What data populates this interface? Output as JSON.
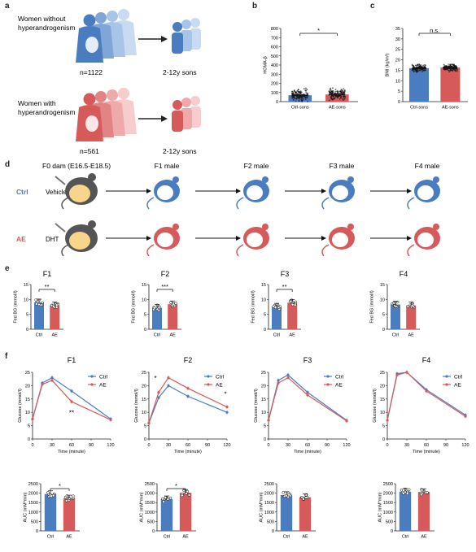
{
  "colors": {
    "ctrl": "#4a7dc0",
    "ae": "#d65a5a",
    "ctrl_light": "#a8c4e8",
    "ae_light": "#eeaaaa",
    "mouse_body": "#555555",
    "belly": "#f7d58a"
  },
  "panel_labels": {
    "a": "a",
    "b": "b",
    "c": "c",
    "d": "d",
    "e": "e",
    "f": "f"
  },
  "panel_a": {
    "group1": "Women without\nhyperandrogenism",
    "group1_n": "n=1122",
    "group1_sons": "2-12y sons",
    "group2": "Women with\nhyperandrogenism",
    "group2_n": "n=561",
    "group2_sons": "2-12y sons"
  },
  "panel_b": {
    "ylabel": "HOMA-β",
    "yticks": [
      "0",
      "100",
      "200",
      "300",
      "400",
      "500",
      "600",
      "700",
      "800"
    ],
    "categories": [
      "Ctrl-sons",
      "AE-sons"
    ],
    "sig": "*"
  },
  "panel_c": {
    "ylabel": "BMI (kg/m²)",
    "yticks": [
      "0",
      "5",
      "10",
      "15",
      "20",
      "25",
      "30",
      "35"
    ],
    "categories": [
      "Ctrl-sons",
      "AE-sons"
    ],
    "sig": "n.s."
  },
  "panel_d": {
    "f0": "F0 dam (E16.5-E18.5)",
    "gens": [
      "F1 male",
      "F2 male",
      "F3 male",
      "F4 male"
    ],
    "ctrl": "Ctrl",
    "ae": "AE",
    "vehicle": "Vehicle",
    "dht": "DHT"
  },
  "panel_e": {
    "ylabel": "Fed BG (mmol/l)",
    "yticks": [
      "0",
      "5",
      "10",
      "15"
    ],
    "categories": [
      "Ctrl",
      "AE"
    ],
    "titles": [
      "F1",
      "F2",
      "F3",
      "F4"
    ],
    "sig": [
      "**",
      "***",
      "**",
      ""
    ]
  },
  "panel_f": {
    "titles": [
      "F1",
      "F2",
      "F3",
      "F4"
    ],
    "legend": [
      "Ctrl",
      "AE"
    ],
    "ylabel": "Glucose (mmol/l)",
    "xlabel": "Time (minute)",
    "yticks": [
      "0",
      "5",
      "10",
      "15",
      "20",
      "25"
    ],
    "xticks": [
      "0",
      "30",
      "60",
      "90",
      "120"
    ],
    "auc_ylabel": "AUC (mM*min)",
    "auc_yticks": [
      "0",
      "500",
      "1000",
      "1500",
      "2000",
      "2500"
    ],
    "auc_categories": [
      "Ctrl",
      "AE"
    ],
    "auc_sig": [
      "*",
      "*",
      "",
      ""
    ],
    "line_sig": [
      [
        "**"
      ],
      [
        "*",
        "*"
      ],
      [],
      []
    ]
  },
  "chart_data": [
    {
      "type": "bar",
      "panel": "b",
      "categories": [
        "Ctrl-sons",
        "AE-sons"
      ],
      "values": [
        70,
        78
      ],
      "ylim": [
        0,
        800
      ],
      "ylabel": "HOMA-β",
      "n": [
        1122,
        561
      ]
    },
    {
      "type": "bar",
      "panel": "c",
      "categories": [
        "Ctrl-sons",
        "AE-sons"
      ],
      "values": [
        16,
        16.3
      ],
      "ylim": [
        0,
        35
      ],
      "ylabel": "BMI (kg/m²)"
    },
    {
      "type": "bar",
      "panel": "e-F1",
      "categories": [
        "Ctrl",
        "AE"
      ],
      "values": [
        9.0,
        8.0
      ],
      "ylim": [
        0,
        15
      ],
      "ylabel": "Fed BG (mmol/l)"
    },
    {
      "type": "bar",
      "panel": "e-F2",
      "categories": [
        "Ctrl",
        "AE"
      ],
      "values": [
        7.2,
        8.4
      ],
      "ylim": [
        0,
        15
      ],
      "ylabel": "Fed BG (mmol/l)"
    },
    {
      "type": "bar",
      "panel": "e-F3",
      "categories": [
        "Ctrl",
        "AE"
      ],
      "values": [
        7.6,
        8.9
      ],
      "ylim": [
        0,
        15
      ],
      "ylabel": "Fed BG (mmol/l)"
    },
    {
      "type": "bar",
      "panel": "e-F4",
      "categories": [
        "Ctrl",
        "AE"
      ],
      "values": [
        8.3,
        8.0
      ],
      "ylim": [
        0,
        15
      ],
      "ylabel": "Fed BG (mmol/l)"
    },
    {
      "type": "line",
      "panel": "f-F1",
      "x": [
        0,
        15,
        30,
        60,
        120
      ],
      "series": [
        {
          "name": "Ctrl",
          "values": [
            7.5,
            21,
            23,
            18,
            7.5
          ]
        },
        {
          "name": "AE",
          "values": [
            7.5,
            20.5,
            22,
            14,
            7.2
          ]
        }
      ],
      "ylim": [
        0,
        25
      ],
      "xlim": [
        0,
        120
      ]
    },
    {
      "type": "line",
      "panel": "f-F2",
      "x": [
        0,
        15,
        30,
        60,
        120
      ],
      "series": [
        {
          "name": "Ctrl",
          "values": [
            6,
            15.5,
            20,
            16,
            10
          ]
        },
        {
          "name": "AE",
          "values": [
            6,
            17.5,
            23,
            19,
            12
          ]
        }
      ],
      "ylim": [
        0,
        25
      ],
      "xlim": [
        0,
        120
      ]
    },
    {
      "type": "line",
      "panel": "f-F3",
      "x": [
        0,
        15,
        30,
        60,
        120
      ],
      "series": [
        {
          "name": "Ctrl",
          "values": [
            7,
            22,
            24,
            17.5,
            7
          ]
        },
        {
          "name": "AE",
          "values": [
            7,
            21,
            23,
            16.5,
            6.8
          ]
        }
      ],
      "ylim": [
        0,
        25
      ],
      "xlim": [
        0,
        120
      ]
    },
    {
      "type": "line",
      "panel": "f-F4",
      "x": [
        0,
        15,
        30,
        60,
        120
      ],
      "series": [
        {
          "name": "Ctrl",
          "values": [
            7,
            24.5,
            25,
            18.5,
            9
          ]
        },
        {
          "name": "AE",
          "values": [
            7,
            24,
            25,
            18,
            8.5
          ]
        }
      ],
      "ylim": [
        0,
        25
      ],
      "xlim": [
        0,
        120
      ]
    },
    {
      "type": "bar",
      "panel": "f-AUC-F1",
      "categories": [
        "Ctrl",
        "AE"
      ],
      "values": [
        1950,
        1720
      ],
      "ylim": [
        0,
        2500
      ]
    },
    {
      "type": "bar",
      "panel": "f-AUC-F2",
      "categories": [
        "Ctrl",
        "AE"
      ],
      "values": [
        1680,
        2020
      ],
      "ylim": [
        0,
        2500
      ]
    },
    {
      "type": "bar",
      "panel": "f-AUC-F3",
      "categories": [
        "Ctrl",
        "AE"
      ],
      "values": [
        1900,
        1780
      ],
      "ylim": [
        0,
        2500
      ]
    },
    {
      "type": "bar",
      "panel": "f-AUC-F4",
      "categories": [
        "Ctrl",
        "AE"
      ],
      "values": [
        2080,
        2060
      ],
      "ylim": [
        0,
        2500
      ]
    }
  ]
}
